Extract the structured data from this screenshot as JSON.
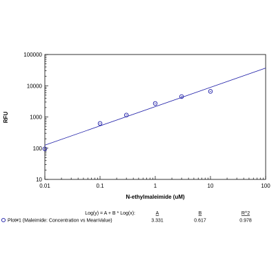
{
  "chart_data": {
    "type": "scatter",
    "xlabel": "N-ethylmaleimide (uM)",
    "ylabel": "RFU",
    "x_scale": "log",
    "y_scale": "log",
    "xlim": [
      0.01,
      100
    ],
    "ylim": [
      10,
      100000
    ],
    "x_ticks": [
      "0.01",
      "0.1",
      "1",
      "10",
      "100"
    ],
    "y_ticks": [
      "10",
      "100",
      "1000",
      "10000",
      "100000"
    ],
    "grid": false,
    "series": [
      {
        "name": "Plot#1 (Maleimide: Concentration vs MeanValue)",
        "color": "#1a1aa6",
        "x": [
          0.01,
          0.1,
          0.3,
          1,
          3,
          10
        ],
        "y": [
          95,
          620,
          1150,
          2700,
          4500,
          6600
        ]
      }
    ],
    "fit": {
      "equation": "Log(y) = A + B * Log(x):",
      "headers": [
        "A",
        "B",
        "R^2"
      ],
      "A": 3.331,
      "B": 0.617,
      "values": [
        "3.331",
        "0.617",
        "0.978"
      ]
    }
  }
}
